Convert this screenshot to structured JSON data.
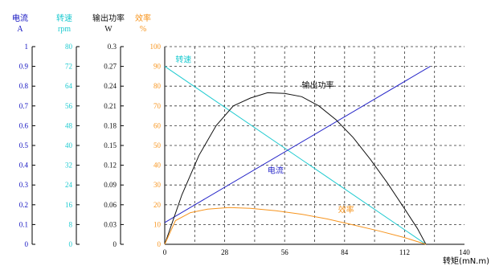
{
  "chart_data": {
    "type": "line",
    "x": {
      "label": "转矩(mN.m)",
      "range": [
        0,
        140
      ],
      "ticks": [
        0,
        28,
        56,
        84,
        112,
        140
      ]
    },
    "primary_axis": {
      "title": "效率",
      "unit": "%",
      "color": "#f7941d",
      "range": [
        0,
        100
      ],
      "ticks": [
        0,
        10,
        20,
        30,
        40,
        50,
        60,
        70,
        80,
        90,
        100
      ]
    },
    "left_axes": [
      {
        "id": "current",
        "title": "电流",
        "unit": "A",
        "color": "#1010c0",
        "ticks": [
          "0",
          "0.1",
          "0.2",
          "0.3",
          "0.4",
          "0.5",
          "0.6",
          "0.7",
          "0.8",
          "0.9",
          "1"
        ]
      },
      {
        "id": "speed",
        "title": "转速",
        "unit": "rpm",
        "color": "#1ecad0",
        "ticks": [
          "0",
          "8",
          "16",
          "24",
          "32",
          "40",
          "48",
          "56",
          "64",
          "72",
          "80"
        ]
      },
      {
        "id": "power",
        "title": "输出功率",
        "unit": "W",
        "color": "#111111",
        "ticks": [
          "0",
          "0.03",
          "0.06",
          "0.09",
          "0.12",
          "0.15",
          "0.18",
          "0.21",
          "0.24",
          "0.27",
          "0.3"
        ]
      }
    ],
    "grid": true,
    "series": [
      {
        "name": "转速",
        "color": "#1ecad0",
        "points": [
          [
            0,
            72
          ],
          [
            122,
            0
          ]
        ]
      },
      {
        "name": "电流",
        "color": "#2424c8",
        "points": [
          [
            0,
            0.11
          ],
          [
            124,
            0.9
          ]
        ]
      },
      {
        "name": "输出功率",
        "color": "#111111",
        "points": [
          [
            0,
            0
          ],
          [
            8,
            0.075
          ],
          [
            16,
            0.135
          ],
          [
            24,
            0.18
          ],
          [
            32,
            0.21
          ],
          [
            40,
            0.222
          ],
          [
            48,
            0.23
          ],
          [
            56,
            0.229
          ],
          [
            64,
            0.224
          ],
          [
            72,
            0.21
          ],
          [
            80,
            0.189
          ],
          [
            88,
            0.162
          ],
          [
            96,
            0.129
          ],
          [
            104,
            0.093
          ],
          [
            112,
            0.054
          ],
          [
            118,
            0.024
          ],
          [
            122,
            0
          ]
        ]
      },
      {
        "name": "效率",
        "color": "#f7941d",
        "points": [
          [
            0,
            0
          ],
          [
            5,
            12
          ],
          [
            12,
            16
          ],
          [
            20,
            17.8
          ],
          [
            30,
            18.6
          ],
          [
            40,
            18.2
          ],
          [
            52,
            17
          ],
          [
            64,
            15.2
          ],
          [
            76,
            12.8
          ],
          [
            88,
            9.8
          ],
          [
            100,
            6.8
          ],
          [
            112,
            3.4
          ],
          [
            122,
            0
          ]
        ]
      }
    ],
    "curve_labels": [
      {
        "text": "转速",
        "color": "#1ecad0",
        "x": 5,
        "y": 92
      },
      {
        "text": "输出功率",
        "color": "#111111",
        "x": 64,
        "y": 79
      },
      {
        "text": "电流",
        "color": "#2424c8",
        "x": 48,
        "y": 36
      },
      {
        "text": "效率",
        "color": "#f7941d",
        "x": 81,
        "y": 16
      }
    ]
  }
}
